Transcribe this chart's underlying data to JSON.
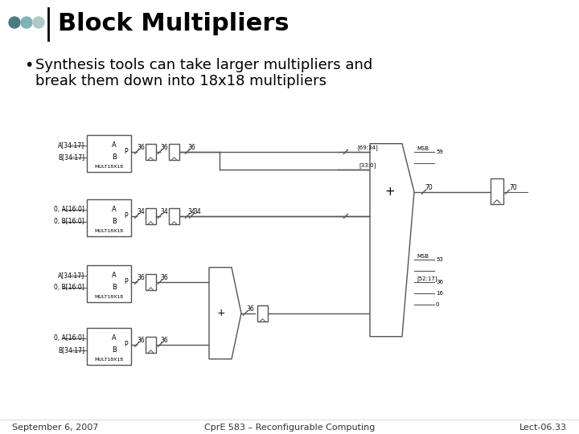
{
  "title": "Block Multipliers",
  "bullet": "Synthesis tools can take larger multipliers and\nbreak them down into 18x18 multipliers",
  "footer_left": "September 6, 2007",
  "footer_center": "CprE 583 – Reconfigurable Computing",
  "footer_right": "Lect-06.33",
  "bg_color": "#ffffff",
  "title_color": "#000000",
  "header_dot_colors": [
    "#4a7c7e",
    "#7fb3b5",
    "#b0c8c8"
  ],
  "header_line_color": "#000000",
  "diagram_line_color": "#555555",
  "box_fill": "#ffffff",
  "box_edge": "#555555"
}
